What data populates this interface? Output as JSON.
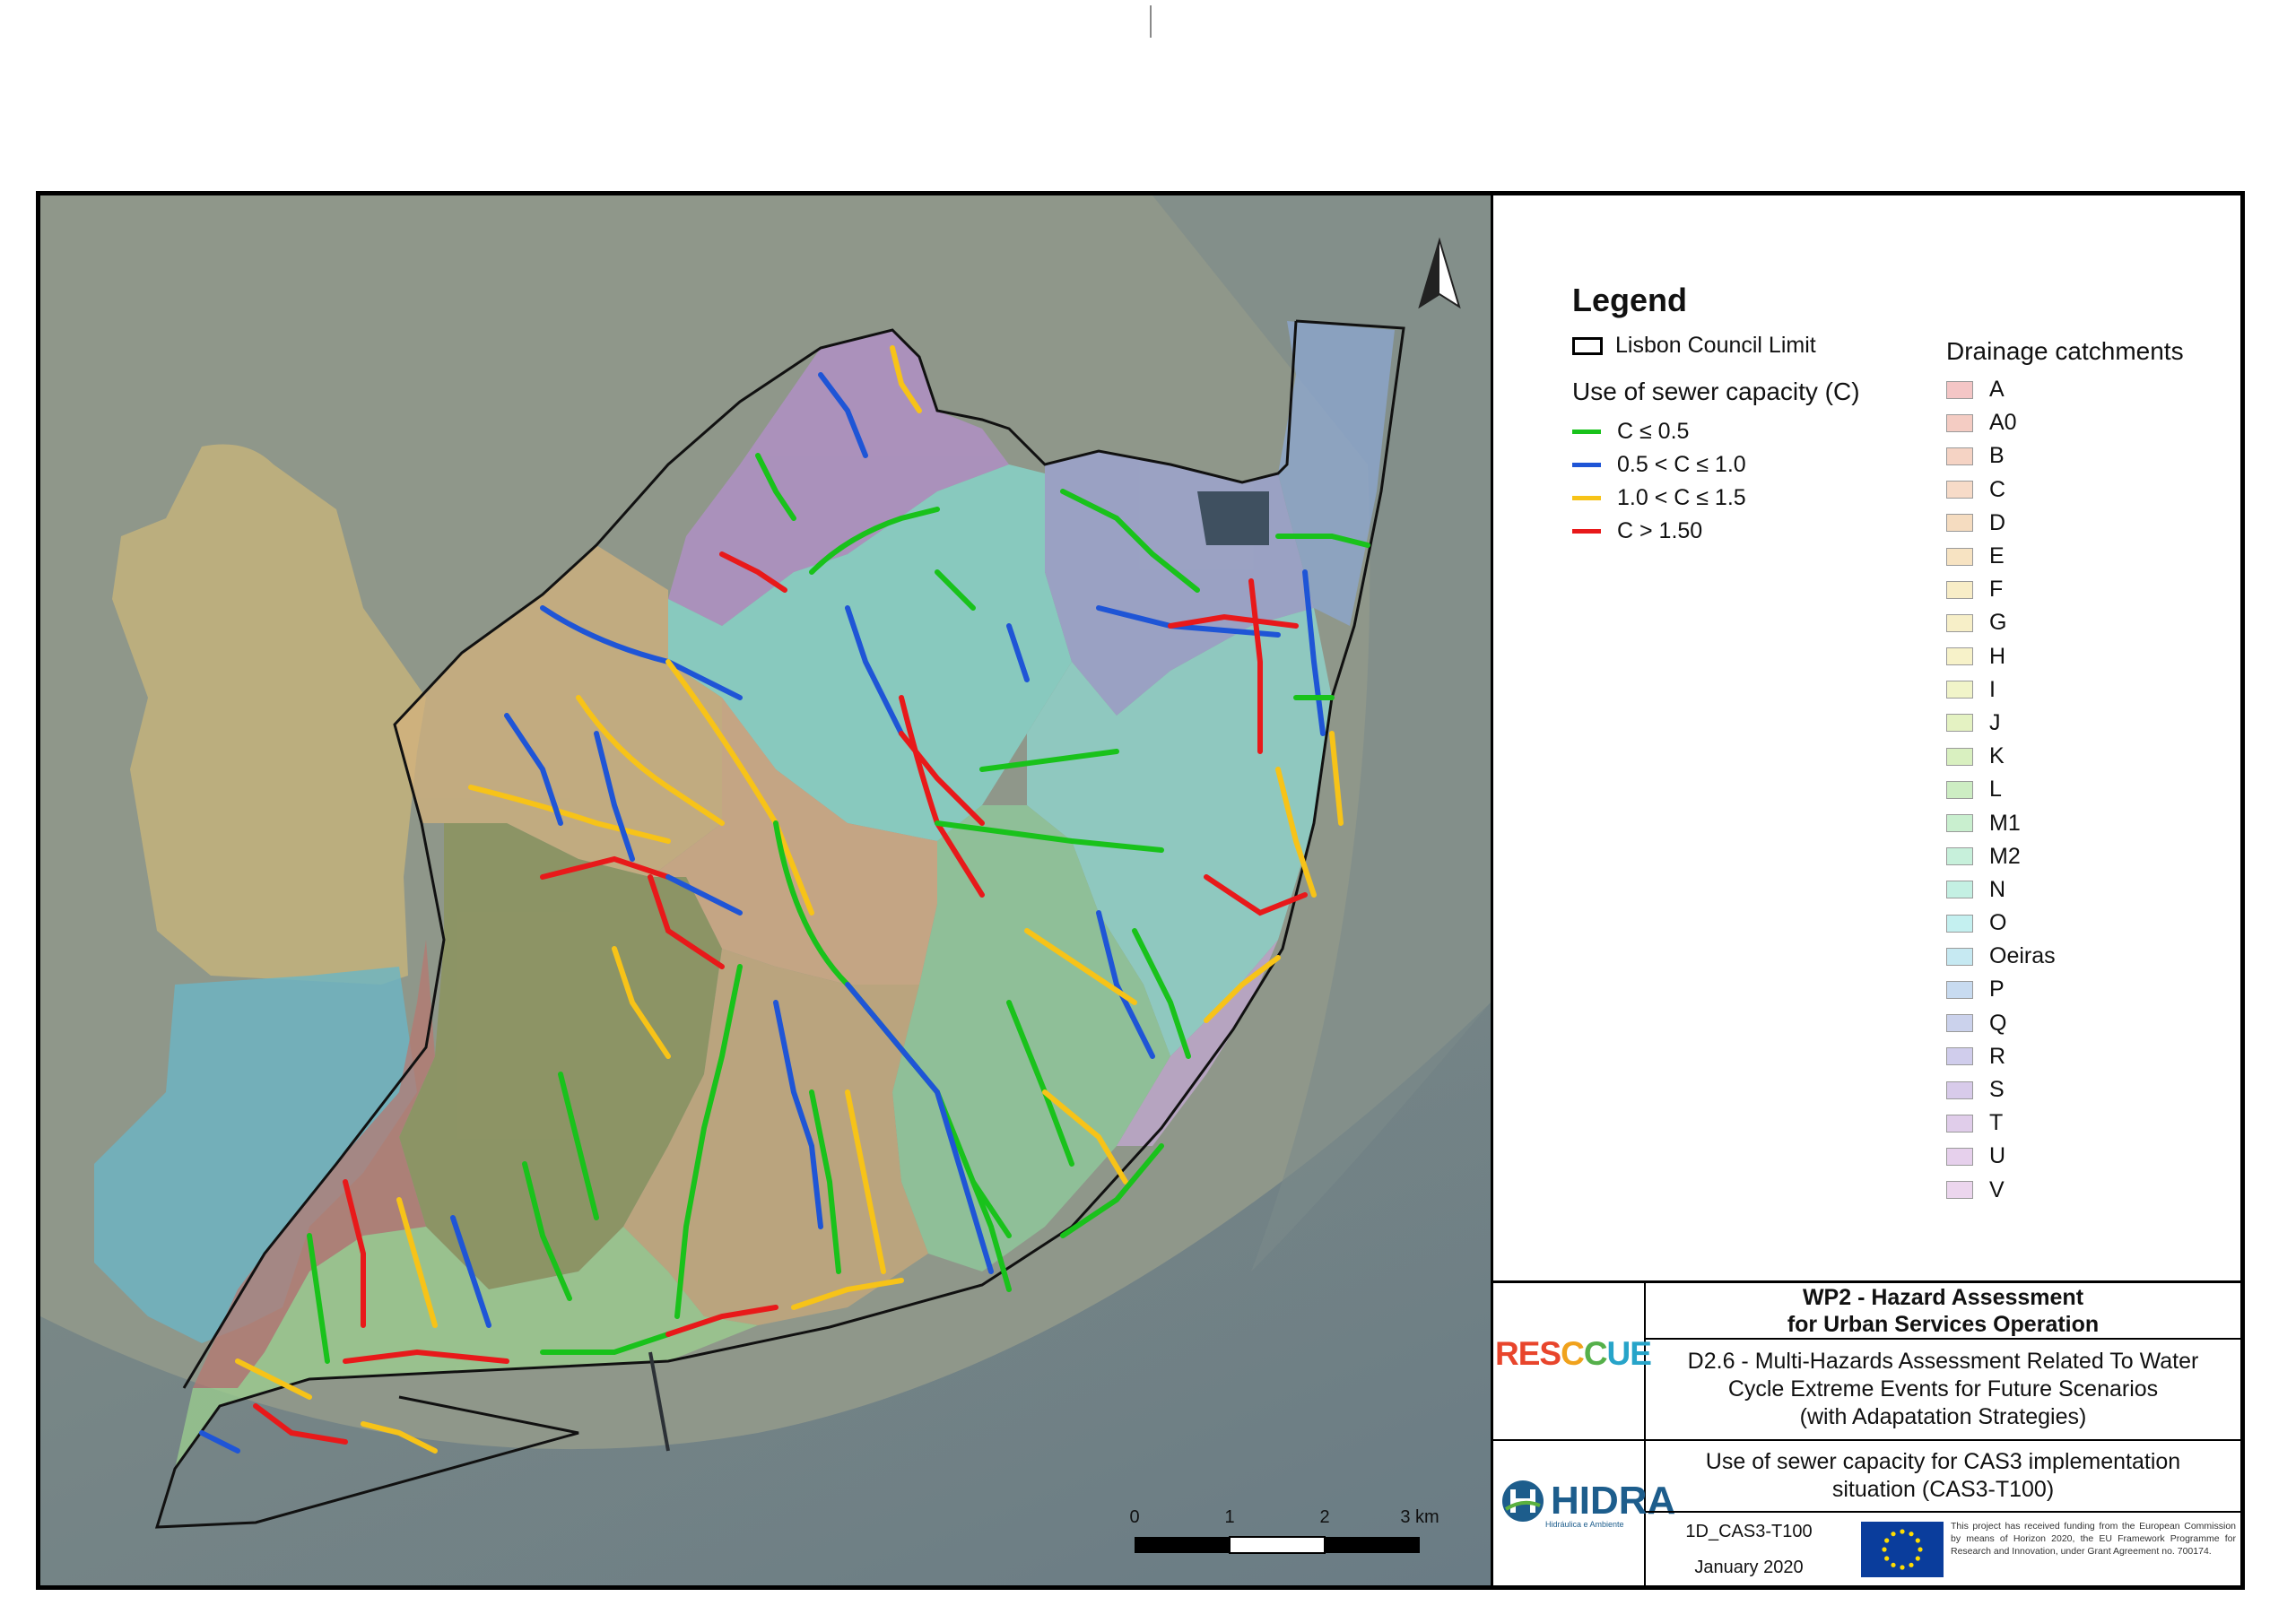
{
  "legend": {
    "title": "Legend",
    "council_limit": "Lisbon Council Limit",
    "capacity_title": "Use of sewer capacity (C)",
    "capacity_classes": [
      {
        "label": "C ≤ 0.5",
        "color": "#19c21b"
      },
      {
        "label": "0.5 < C ≤ 1.0",
        "color": "#1f55d6"
      },
      {
        "label": "1.0 < C ≤ 1.5",
        "color": "#f7c318"
      },
      {
        "label": "C > 1.50",
        "color": "#e8191a"
      }
    ],
    "catchments_title": "Drainage catchments",
    "catchments": [
      {
        "label": "A",
        "color": "#f4c6c6"
      },
      {
        "label": "A0",
        "color": "#f4ccc3"
      },
      {
        "label": "B",
        "color": "#f5d3c4"
      },
      {
        "label": "C",
        "color": "#f7dbc8"
      },
      {
        "label": "D",
        "color": "#f5dcc0"
      },
      {
        "label": "E",
        "color": "#f7e3c2"
      },
      {
        "label": "F",
        "color": "#f8edc7"
      },
      {
        "label": "G",
        "color": "#f7efc8"
      },
      {
        "label": "H",
        "color": "#f7f2c9"
      },
      {
        "label": "I",
        "color": "#f1f4c9"
      },
      {
        "label": "J",
        "color": "#e4f2c2"
      },
      {
        "label": "K",
        "color": "#d9f0c0"
      },
      {
        "label": "L",
        "color": "#cdedc3"
      },
      {
        "label": "M1",
        "color": "#c9efcf"
      },
      {
        "label": "M2",
        "color": "#c7f0db"
      },
      {
        "label": "N",
        "color": "#c4f0e3"
      },
      {
        "label": "O",
        "color": "#c4f0f0"
      },
      {
        "label": "Oeiras",
        "color": "#c6e9f2"
      },
      {
        "label": "P",
        "color": "#c8dbf0"
      },
      {
        "label": "Q",
        "color": "#cbd2ec"
      },
      {
        "label": "R",
        "color": "#d0cdec"
      },
      {
        "label": "S",
        "color": "#d8cbea"
      },
      {
        "label": "T",
        "color": "#e0cdea"
      },
      {
        "label": "U",
        "color": "#e6d0ec"
      },
      {
        "label": "V",
        "color": "#ecd6ee"
      }
    ]
  },
  "scale_bar": {
    "ticks": [
      "0",
      "1",
      "2",
      "3 km"
    ]
  },
  "title_block": {
    "wp_line1": "WP2 - Hazard Assessment",
    "wp_line2": "for Urban Services Operation",
    "deliverable_line1": "D2.6 - Multi-Hazards Assessment Related To Water",
    "deliverable_line2": "Cycle Extreme Events for Future Scenarios",
    "deliverable_line3": "(with Adapatation Strategies)",
    "map_title_line1": "Use of sewer capacity for CAS3 implementation",
    "map_title_line2": "situation (CAS3-T100)",
    "code": "1D_CAS3-T100",
    "date": "January 2020",
    "funding": "This project has received funding from the European Commission by means of Horizon 2020, the EU Framework Programme for Research and Innovation, under Grant Agreement no. 700174.",
    "rescue_logo": "RESCCUE",
    "hidra_logo": "HIDRA",
    "hidra_sub": "Hidráulica e Ambiente"
  },
  "map": {
    "water_color": "#6f8289",
    "land_color": "#8e9486",
    "north_arrow": "north-arrow-icon"
  }
}
